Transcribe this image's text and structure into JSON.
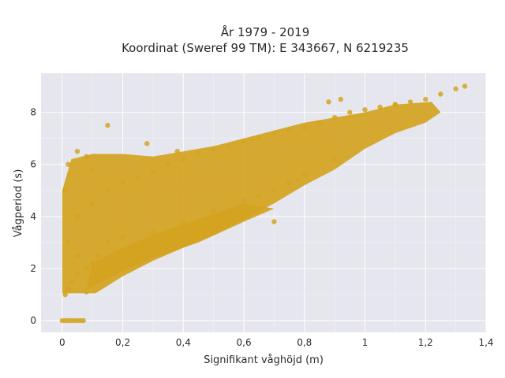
{
  "chart_data": {
    "type": "scatter",
    "title": "År 1979 - 2019",
    "subtitle": "Koordinat (Sweref 99 TM): E 343667, N 6219235",
    "xlabel": "Signifikant våghöjd (m)",
    "ylabel": "Vågperiod (s)",
    "xlim": [
      -0.07,
      1.4
    ],
    "ylim": [
      -0.45,
      9.5
    ],
    "x_ticks": [
      0,
      0.2,
      0.4,
      0.6,
      0.8,
      1,
      1.2,
      1.4
    ],
    "x_tick_labels": [
      "0",
      "0,2",
      "0,4",
      "0,6",
      "0,8",
      "1",
      "1,2",
      "1,4"
    ],
    "y_ticks": [
      0,
      2,
      4,
      6,
      8
    ],
    "y_tick_labels": [
      "0",
      "2",
      "4",
      "6",
      "8"
    ],
    "grid": true,
    "series": [
      {
        "color": "#d4a320",
        "x": [
          0.0,
          0.01,
          0.02,
          0.03,
          0.04,
          0.05,
          0.06,
          0.07,
          0.01,
          0.02,
          0.03,
          0.05,
          0.08,
          0.01,
          0.02,
          0.05,
          0.08,
          0.1,
          0.02,
          0.05,
          0.08,
          0.1,
          0.12,
          0.05,
          0.1,
          0.15,
          0.2,
          0.25,
          0.3,
          0.35,
          0.4,
          0.45,
          0.5,
          0.55,
          0.6,
          0.65,
          0.7,
          0.75,
          0.8,
          0.85,
          0.9,
          0.95,
          1.0,
          1.05,
          1.1,
          1.15,
          1.2,
          1.25,
          1.3,
          1.33,
          0.15,
          0.2,
          0.3,
          0.4,
          0.5,
          0.6,
          0.7,
          0.75,
          0.8,
          0.9,
          0.1,
          0.15,
          0.25,
          0.35,
          0.45,
          0.55,
          0.65,
          0.78,
          0.15,
          0.28,
          0.38,
          0.7,
          0.88,
          0.92,
          1.1
        ],
        "y": [
          0.0,
          0.0,
          0.0,
          0.0,
          0.0,
          0.0,
          0.0,
          0.0,
          1.0,
          1.2,
          1.5,
          1.8,
          1.1,
          5.0,
          6.0,
          6.5,
          6.3,
          5.8,
          3.0,
          2.5,
          2.0,
          2.2,
          2.5,
          4.0,
          4.5,
          5.0,
          5.3,
          5.5,
          5.7,
          6.0,
          6.2,
          6.4,
          6.6,
          6.7,
          6.9,
          7.0,
          7.2,
          7.3,
          7.4,
          7.6,
          7.8,
          8.0,
          8.1,
          8.2,
          8.3,
          8.4,
          8.5,
          8.7,
          8.9,
          9.0,
          3.0,
          3.2,
          3.4,
          3.8,
          4.2,
          4.6,
          5.0,
          5.3,
          5.6,
          6.2,
          1.5,
          2.0,
          2.6,
          3.0,
          3.6,
          4.2,
          4.8,
          5.4,
          7.5,
          6.8,
          6.5,
          3.8,
          8.4,
          8.5,
          8.3
        ]
      }
    ]
  }
}
